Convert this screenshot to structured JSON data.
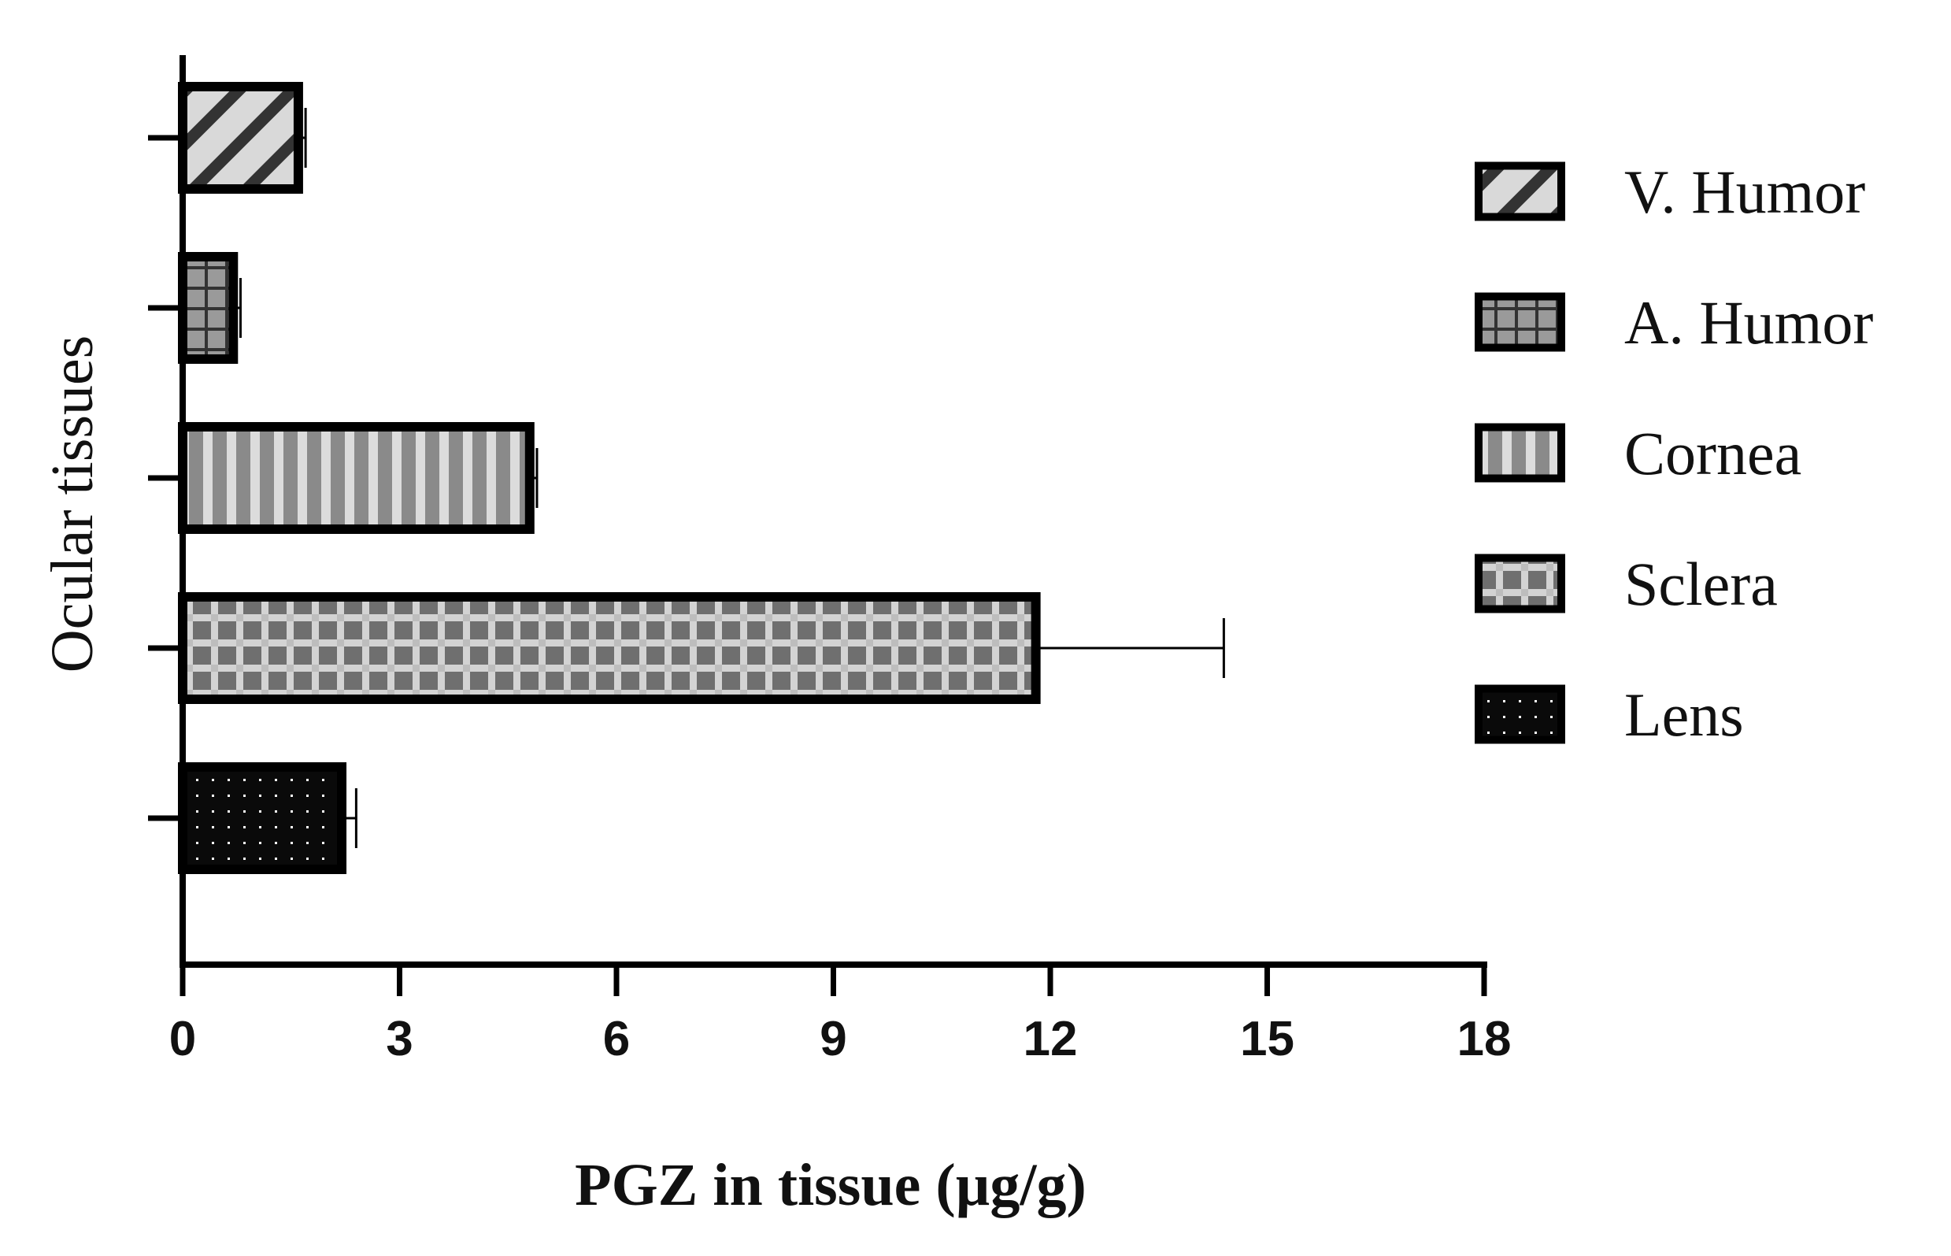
{
  "chart_data": {
    "type": "bar",
    "orientation": "horizontal",
    "xlabel": "PGZ in tissue (µg/g)",
    "ylabel": "Ocular tissues",
    "xlim": [
      0,
      18
    ],
    "xticks": [
      "0",
      "3",
      "6",
      "9",
      "12",
      "15",
      "18"
    ],
    "grid": false,
    "legend_position": "right",
    "series": [
      {
        "name": "V. Humor",
        "value": 1.6,
        "error": 0.1,
        "pattern": "diagonal"
      },
      {
        "name": "A. Humor",
        "value": 0.7,
        "error": 0.1,
        "pattern": "grid"
      },
      {
        "name": "Cornea",
        "value": 4.8,
        "error": 0.1,
        "pattern": "vertical"
      },
      {
        "name": "Sclera",
        "value": 11.8,
        "error": 2.6,
        "pattern": "checker"
      },
      {
        "name": "Lens",
        "value": 2.2,
        "error": 0.2,
        "pattern": "dots"
      }
    ]
  }
}
